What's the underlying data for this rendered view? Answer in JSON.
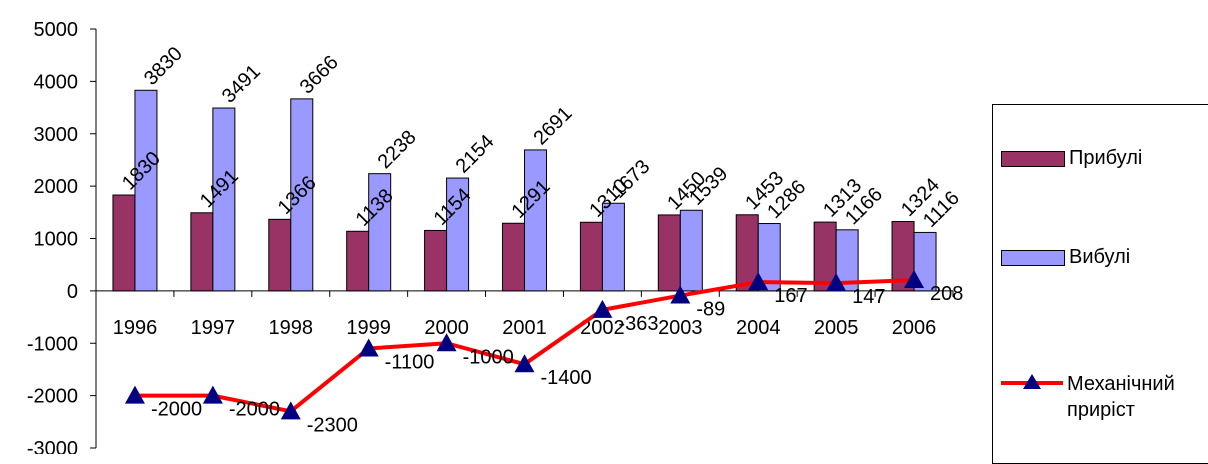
{
  "chart_data": {
    "type": "bar",
    "categories": [
      "1996",
      "1997",
      "1998",
      "1999",
      "2000",
      "2001",
      "2002",
      "2003",
      "2004",
      "2005",
      "2006"
    ],
    "series": [
      {
        "name": "Прибулі",
        "type": "bar",
        "color": "#993366",
        "values": [
          1830,
          1491,
          1366,
          1138,
          1154,
          1291,
          1310,
          1450,
          1453,
          1313,
          1324
        ]
      },
      {
        "name": "Вибулі",
        "type": "bar",
        "color": "#9999FF",
        "values": [
          3830,
          3491,
          3666,
          2238,
          2154,
          2691,
          1673,
          1539,
          1286,
          1166,
          1116
        ]
      },
      {
        "name": "Механічний приріст",
        "type": "line",
        "color": "#FF0000",
        "marker_color": "#000080",
        "values": [
          -2000,
          -2000,
          -2300,
          -1100,
          -1000,
          -1400,
          -363,
          -89,
          167,
          147,
          208
        ]
      }
    ],
    "ylim": [
      -3000,
      5000
    ],
    "yticks": [
      "5000",
      "4000",
      "3000",
      "2000",
      "1000",
      "0",
      "-1000",
      "-2000",
      "-3000"
    ],
    "legend_position": "right",
    "grid": false,
    "title": "",
    "xlabel": "",
    "ylabel": ""
  },
  "legend": {
    "items": [
      {
        "label": "Прибулі"
      },
      {
        "label": "Вибулі"
      },
      {
        "label_line1": "Механічний",
        "label_line2": "приріст"
      }
    ]
  }
}
